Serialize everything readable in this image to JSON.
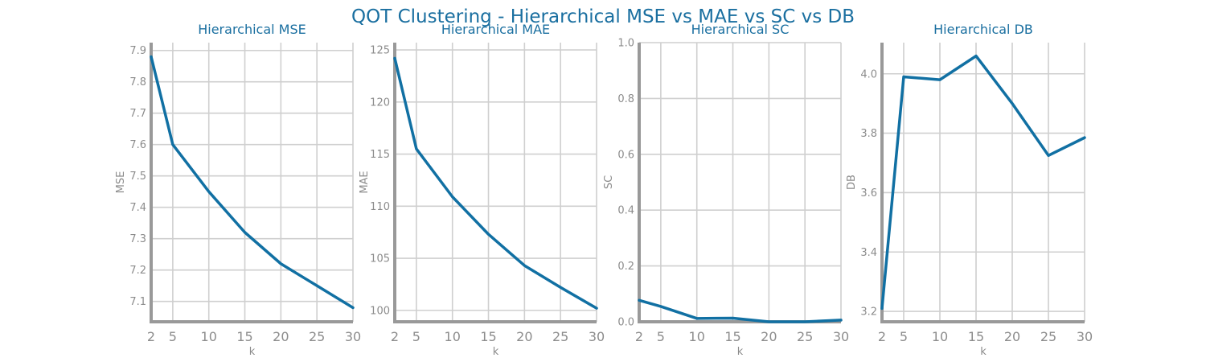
{
  "suptitle": "QOT Clustering - Hierarchical MSE vs MAE vs SC vs DB",
  "colors": {
    "title": "#1a6fa0",
    "line": "#1170a3",
    "grid": "#cfcfcf",
    "axis": "#999999",
    "tick_text": "#8c8c8c"
  },
  "chart_data": [
    {
      "type": "line",
      "title": "Hierarchical MSE",
      "xlabel": "k",
      "ylabel": "MSE",
      "x": [
        2,
        5,
        10,
        15,
        20,
        25,
        30
      ],
      "y": [
        7.88,
        7.6,
        7.45,
        7.32,
        7.22,
        7.15,
        7.08
      ],
      "xlim": [
        2,
        30
      ],
      "ylim": [
        7.035,
        7.925
      ],
      "xticks": [
        2,
        5,
        10,
        15,
        20,
        25,
        30
      ],
      "xtick_labels": [
        "2",
        "5",
        "10",
        "15",
        "20",
        "25",
        "30"
      ],
      "yticks": [
        7.1,
        7.2,
        7.3,
        7.4,
        7.5,
        7.6,
        7.7,
        7.8,
        7.9
      ],
      "ytick_labels": [
        "7.1",
        "7.2",
        "7.3",
        "7.4",
        "7.5",
        "7.6",
        "7.7",
        "7.8",
        "7.9"
      ],
      "grid": true
    },
    {
      "type": "line",
      "title": "Hierarchical MAE",
      "xlabel": "k",
      "ylabel": "MAE",
      "x": [
        2,
        5,
        10,
        15,
        20,
        25,
        30
      ],
      "y": [
        124.2,
        115.5,
        110.9,
        107.3,
        104.3,
        102.2,
        100.2
      ],
      "xlim": [
        2,
        30
      ],
      "ylim": [
        98.9,
        125.7
      ],
      "xticks": [
        2,
        5,
        10,
        15,
        20,
        25,
        30
      ],
      "xtick_labels": [
        "2",
        "5",
        "10",
        "15",
        "20",
        "25",
        "30"
      ],
      "yticks": [
        100,
        105,
        110,
        115,
        120,
        125
      ],
      "ytick_labels": [
        "100",
        "105",
        "110",
        "115",
        "120",
        "125"
      ],
      "grid": true
    },
    {
      "type": "line",
      "title": "Hierarchical SC",
      "xlabel": "k",
      "ylabel": "SC",
      "x": [
        2,
        5,
        10,
        15,
        20,
        25,
        30
      ],
      "y": [
        0.077,
        0.055,
        0.012,
        0.013,
        0.0,
        0.0,
        0.006
      ],
      "xlim": [
        2,
        30
      ],
      "ylim": [
        0.0,
        1.0
      ],
      "xticks": [
        2,
        5,
        10,
        15,
        20,
        25,
        30
      ],
      "xtick_labels": [
        "2",
        "5",
        "10",
        "15",
        "20",
        "25",
        "30"
      ],
      "yticks": [
        0.0,
        0.2,
        0.4,
        0.6,
        0.8,
        1.0
      ],
      "ytick_labels": [
        "0.0",
        "0.2",
        "0.4",
        "0.6",
        "0.8",
        "1.0"
      ],
      "grid": true
    },
    {
      "type": "line",
      "title": "Hierarchical DB",
      "xlabel": "k",
      "ylabel": "DB",
      "x": [
        2,
        5,
        10,
        15,
        20,
        25,
        30
      ],
      "y": [
        3.21,
        3.99,
        3.98,
        4.06,
        3.9,
        3.725,
        3.785
      ],
      "xlim": [
        2,
        30
      ],
      "ylim": [
        3.165,
        4.105
      ],
      "xticks": [
        2,
        5,
        10,
        15,
        20,
        25,
        30
      ],
      "xtick_labels": [
        "2",
        "5",
        "10",
        "15",
        "20",
        "25",
        "30"
      ],
      "yticks": [
        3.2,
        3.4,
        3.6,
        3.8,
        4.0
      ],
      "ytick_labels": [
        "3.2",
        "3.4",
        "3.6",
        "3.8",
        "4.0"
      ],
      "grid": true
    }
  ]
}
